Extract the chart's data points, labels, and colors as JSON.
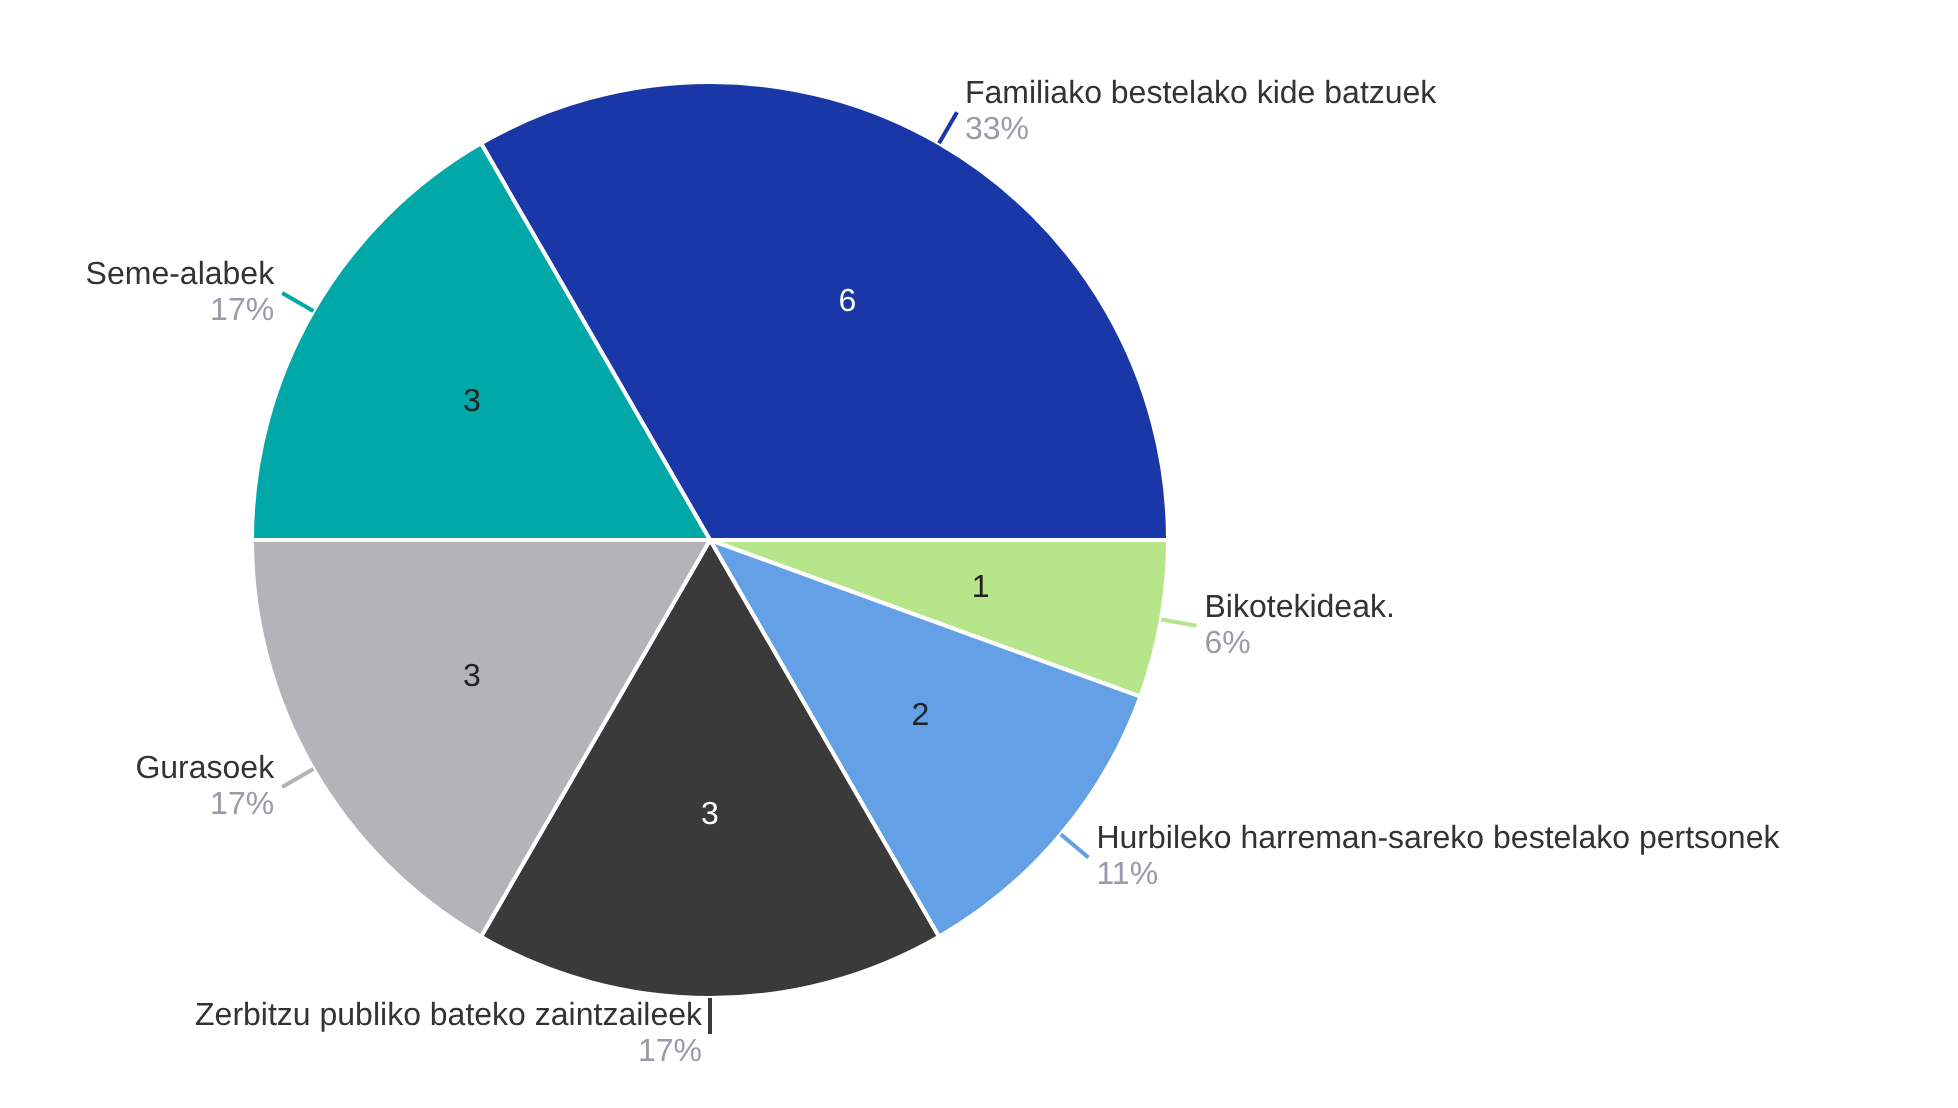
{
  "chart_data": {
    "type": "pie",
    "categories": [
      "Familiako bestelako kide batzuek",
      "Bikotekideak.",
      "Hurbileko harreman-sareko bestelako pertsonek",
      "Zerbitzu publiko bateko zaintzaileek",
      "Gurasoek",
      "Seme-alabek"
    ],
    "values": [
      6,
      1,
      2,
      3,
      3,
      3
    ],
    "colors": [
      "#1a37a8",
      "#b7e68a",
      "#63a0e6",
      "#3a3a3a",
      "#b4b3b8",
      "#00a8a8"
    ],
    "annotations": [
      "33%",
      "6%",
      "11%",
      "17%",
      "17%",
      "17%"
    ],
    "data_labels": true,
    "legend": false
  }
}
